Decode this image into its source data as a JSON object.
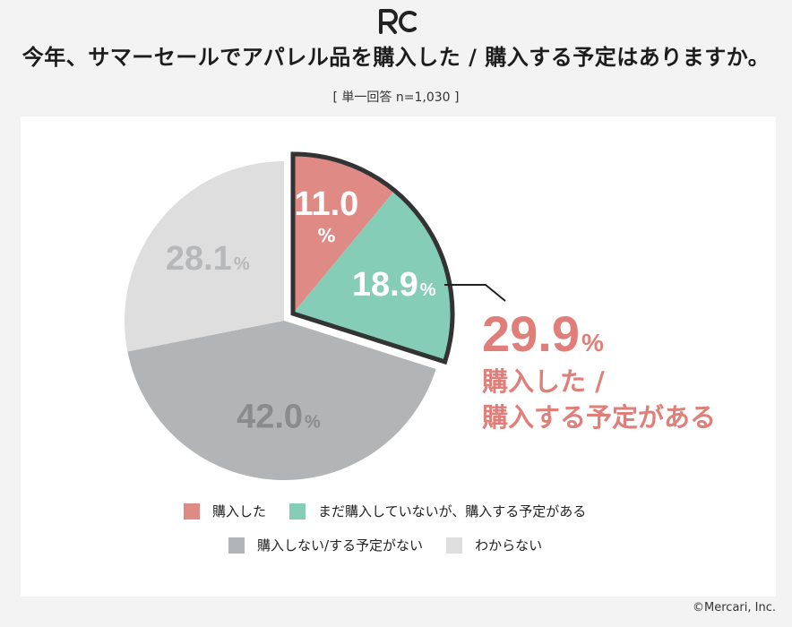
{
  "title": "今年、サマーセールでアパレル品を購入した / 購入する予定はありますか。",
  "subtitle": "[ 単一回答 n=1,030 ]",
  "highlight": {
    "value": "29.9",
    "unit": "%",
    "line1": "購入した /",
    "line2": "購入する予定がある"
  },
  "copyright": "©Mercari, Inc.",
  "colors": {
    "purchased": "#e08a86",
    "planning": "#86cdb8",
    "no": "#b3b4b6",
    "unknown": "#dedede",
    "highlight_text": "#e07f79"
  },
  "chart_data": {
    "type": "pie",
    "title": "今年、サマーセールでアパレル品を購入した / 購入する予定はありますか。",
    "slices": [
      {
        "label": "購入した",
        "value": 11.0,
        "display": "11.0",
        "color": "#e08a86"
      },
      {
        "label": "まだ購入していないが、購入する予定がある",
        "value": 18.9,
        "display": "18.9",
        "color": "#86cdb8"
      },
      {
        "label": "購入しない/する予定がない",
        "value": 42.0,
        "display": "42.0",
        "color": "#b3b4b6"
      },
      {
        "label": "わからない",
        "value": 28.1,
        "display": "28.1",
        "color": "#dedede"
      }
    ],
    "unit": "%",
    "exploded": "購入した + まだ購入していないが、購入する予定がある",
    "legend_position": "bottom"
  }
}
